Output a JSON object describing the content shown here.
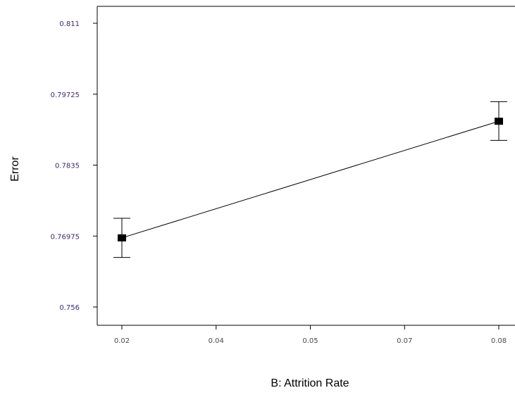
{
  "chart_data": {
    "type": "line",
    "title": "",
    "xlabel": "B: Attrition Rate",
    "ylabel": "Error",
    "x_ticks": [
      "0.02",
      "0.04",
      "0.05",
      "0.07",
      "0.08"
    ],
    "y_ticks": [
      "0.811",
      "0.79725",
      "0.7835",
      "0.76975",
      "0.756"
    ],
    "xlim": [
      0.02,
      0.08
    ],
    "ylim": [
      0.756,
      0.811
    ],
    "grid": false,
    "series": [
      {
        "x": [
          0.02,
          0.08
        ],
        "values": [
          0.7694,
          0.792
        ],
        "error_low": [
          0.7656,
          0.7883
        ],
        "error_high": [
          0.7732,
          0.7958
        ]
      }
    ],
    "colors": {
      "line": "#000000",
      "y_tick_label": "#3d2a6e",
      "x_tick_label": "#4a4a4a",
      "axis": "#000000"
    }
  }
}
